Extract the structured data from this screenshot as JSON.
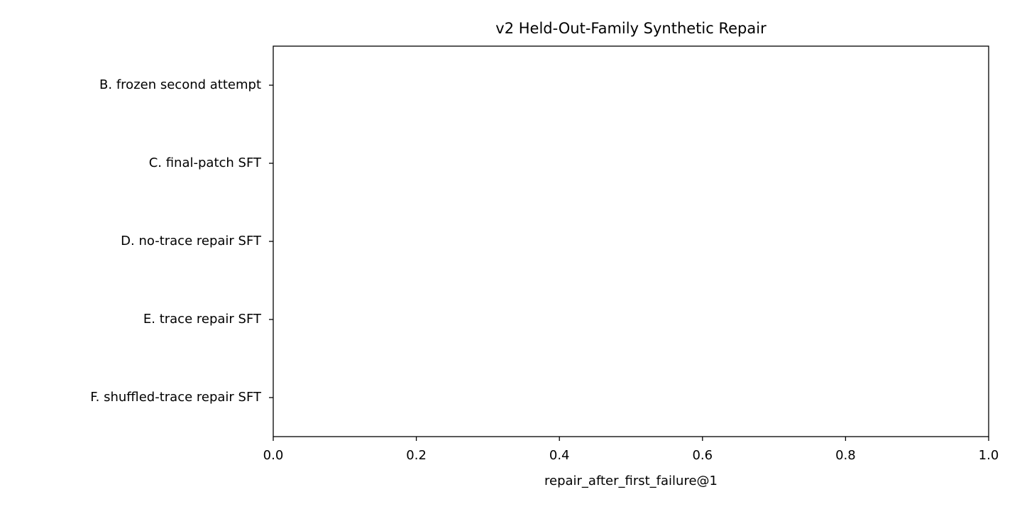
{
  "chart_data": {
    "type": "barh",
    "title": "v2 Held-Out-Family Synthetic Repair",
    "x_label": "repair_after_first_failure@1",
    "categories": [
      "B. frozen second attempt",
      "C. final-patch SFT",
      "D. no-trace repair SFT",
      "E. trace repair SFT",
      "F. shuffled-trace repair SFT"
    ],
    "values": [
      0,
      0,
      0,
      0,
      0
    ],
    "xlim": [
      0,
      1
    ],
    "xticks": [
      {
        "value": 0,
        "label": "0.0"
      },
      0.2,
      0.4,
      0.6,
      0.8,
      {
        "value": 1,
        "label": "1.0"
      }
    ],
    "grid": false
  }
}
